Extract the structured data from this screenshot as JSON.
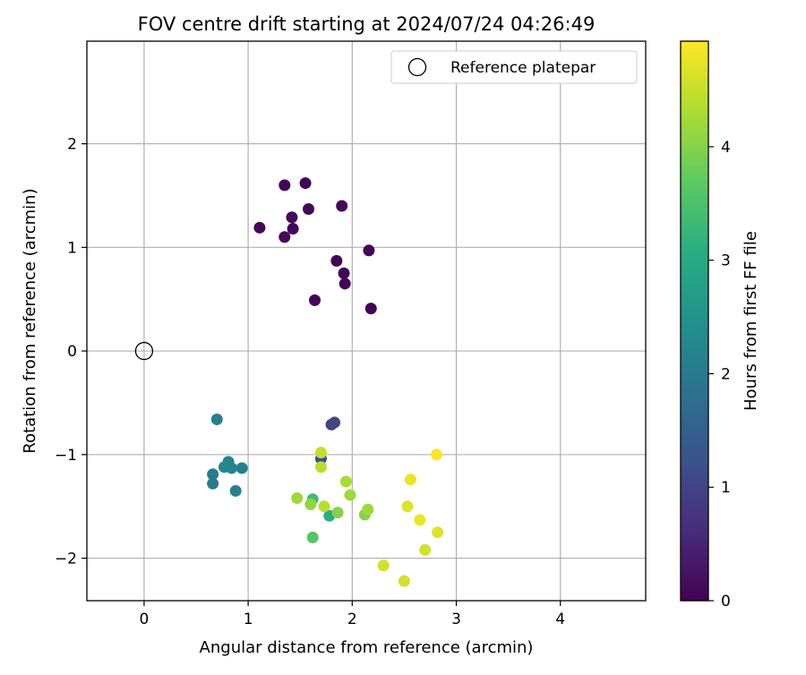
{
  "chart_data": {
    "type": "scatter",
    "title": "FOV centre drift starting at 2024/07/24 04:26:49",
    "xlabel": "Angular distance from reference (arcmin)",
    "ylabel": "Rotation from reference (arcmin)",
    "xlim": [
      -0.55,
      4.82
    ],
    "ylim": [
      -2.41,
      2.99
    ],
    "xticks": [
      0,
      1,
      2,
      3,
      4
    ],
    "yticks": [
      -2,
      -1,
      0,
      1,
      2
    ],
    "xtick_labels": [
      "0",
      "1",
      "2",
      "3",
      "4"
    ],
    "ytick_labels": [
      "−2",
      "−1",
      "0",
      "1",
      "2"
    ],
    "grid": true,
    "legend": {
      "position": "top-right",
      "label": "Reference platepar"
    },
    "reference": {
      "x": 0,
      "y": 0
    },
    "colorbar": {
      "label": "Hours from first FF file",
      "cmap": "viridis",
      "range": [
        0,
        4.93
      ],
      "ticks": [
        0,
        1,
        2,
        3,
        4
      ],
      "tick_labels": [
        "0",
        "1",
        "2",
        "3",
        "4"
      ]
    },
    "points": [
      {
        "x": 1.35,
        "y": 1.6,
        "c": 0.05
      },
      {
        "x": 1.55,
        "y": 1.62,
        "c": 0.06
      },
      {
        "x": 1.9,
        "y": 1.4,
        "c": 0.1
      },
      {
        "x": 1.58,
        "y": 1.37,
        "c": 0.07
      },
      {
        "x": 1.42,
        "y": 1.29,
        "c": 0.12
      },
      {
        "x": 1.11,
        "y": 1.19,
        "c": 0.08
      },
      {
        "x": 1.43,
        "y": 1.18,
        "c": 0.1
      },
      {
        "x": 1.35,
        "y": 1.1,
        "c": 0.09
      },
      {
        "x": 2.16,
        "y": 0.97,
        "c": 0.03
      },
      {
        "x": 1.85,
        "y": 0.87,
        "c": 0.05
      },
      {
        "x": 1.92,
        "y": 0.75,
        "c": 0.07
      },
      {
        "x": 1.93,
        "y": 0.65,
        "c": 0.06
      },
      {
        "x": 1.64,
        "y": 0.49,
        "c": 0.04
      },
      {
        "x": 2.18,
        "y": 0.41,
        "c": 0.02
      },
      {
        "x": 1.8,
        "y": -0.71,
        "c": 1.0
      },
      {
        "x": 1.83,
        "y": -0.69,
        "c": 1.05
      },
      {
        "x": 1.7,
        "y": -1.04,
        "c": 1.2
      },
      {
        "x": 0.7,
        "y": -0.66,
        "c": 2.1
      },
      {
        "x": 0.81,
        "y": -1.07,
        "c": 2.2
      },
      {
        "x": 0.77,
        "y": -1.12,
        "c": 2.3
      },
      {
        "x": 0.84,
        "y": -1.13,
        "c": 2.25
      },
      {
        "x": 0.94,
        "y": -1.13,
        "c": 2.15
      },
      {
        "x": 0.66,
        "y": -1.19,
        "c": 2.05
      },
      {
        "x": 0.66,
        "y": -1.28,
        "c": 2.0
      },
      {
        "x": 0.88,
        "y": -1.35,
        "c": 2.1
      },
      {
        "x": 1.62,
        "y": -1.43,
        "c": 3.4
      },
      {
        "x": 1.78,
        "y": -1.59,
        "c": 3.1
      },
      {
        "x": 1.62,
        "y": -1.8,
        "c": 3.6
      },
      {
        "x": 1.7,
        "y": -0.98,
        "c": 4.5
      },
      {
        "x": 1.7,
        "y": -1.12,
        "c": 4.4
      },
      {
        "x": 1.47,
        "y": -1.42,
        "c": 4.2
      },
      {
        "x": 1.6,
        "y": -1.48,
        "c": 4.1
      },
      {
        "x": 1.73,
        "y": -1.5,
        "c": 4.4
      },
      {
        "x": 1.86,
        "y": -1.56,
        "c": 4.0
      },
      {
        "x": 1.94,
        "y": -1.26,
        "c": 4.3
      },
      {
        "x": 1.98,
        "y": -1.39,
        "c": 4.2
      },
      {
        "x": 2.12,
        "y": -1.58,
        "c": 4.0
      },
      {
        "x": 2.15,
        "y": -1.53,
        "c": 4.2
      },
      {
        "x": 2.81,
        "y": -1.0,
        "c": 4.9
      },
      {
        "x": 2.56,
        "y": -1.24,
        "c": 4.8
      },
      {
        "x": 2.53,
        "y": -1.5,
        "c": 4.7
      },
      {
        "x": 2.65,
        "y": -1.63,
        "c": 4.8
      },
      {
        "x": 2.82,
        "y": -1.75,
        "c": 4.7
      },
      {
        "x": 2.7,
        "y": -1.92,
        "c": 4.6
      },
      {
        "x": 2.3,
        "y": -2.07,
        "c": 4.6
      },
      {
        "x": 2.5,
        "y": -2.22,
        "c": 4.6
      }
    ]
  }
}
